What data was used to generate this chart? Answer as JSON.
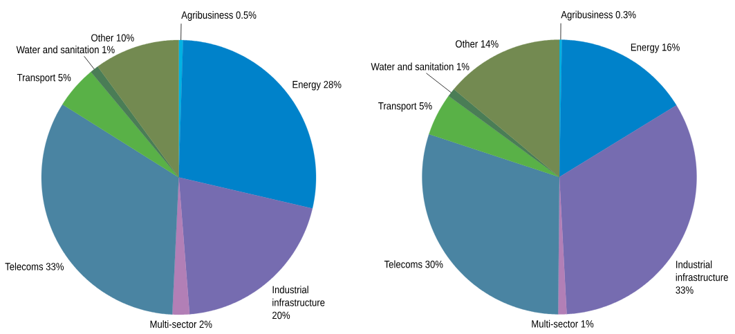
{
  "chart_data": [
    {
      "type": "pie",
      "categories": [
        "Agribusiness",
        "Energy",
        "Industrial infrastructure",
        "Multi-sector",
        "Telecoms",
        "Transport",
        "Water and sanitation",
        "Other"
      ],
      "values": [
        0.5,
        28,
        20,
        2,
        33,
        5,
        1,
        10
      ],
      "value_labels": [
        "0.5%",
        "28%",
        "20%",
        "2%",
        "33%",
        "5%",
        "1%",
        "10%"
      ],
      "colors": [
        "#00b2e3",
        "#0082ca",
        "#766cb0",
        "#b27fb6",
        "#4a84a2",
        "#59b147",
        "#4a7d56",
        "#738a51"
      ]
    },
    {
      "type": "pie",
      "categories": [
        "Agribusiness",
        "Energy",
        "Industrial infrastructure",
        "Multi-sector",
        "Telecoms",
        "Transport",
        "Water and sanitation",
        "Other"
      ],
      "values": [
        0.3,
        16,
        33,
        1,
        30,
        5,
        1,
        14
      ],
      "value_labels": [
        "0.3%",
        "16%",
        "33%",
        "1%",
        "30%",
        "5%",
        "1%",
        "14%"
      ],
      "colors": [
        "#00b2e3",
        "#0082ca",
        "#766cb0",
        "#b27fb6",
        "#4a84a2",
        "#59b147",
        "#4a7d56",
        "#738a51"
      ]
    }
  ]
}
